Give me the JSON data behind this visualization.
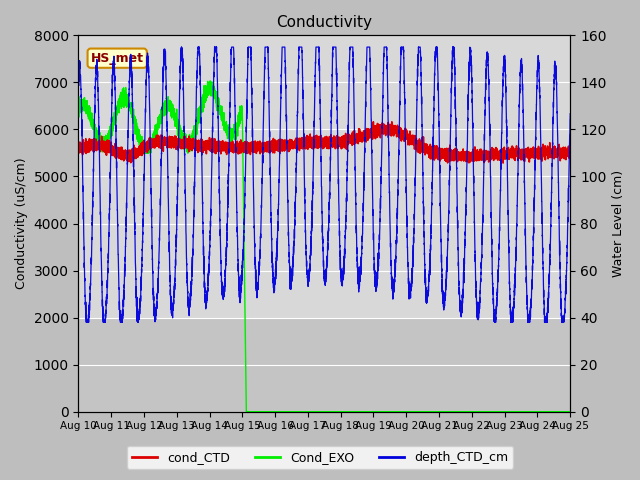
{
  "title": "Conductivity",
  "ylabel_left": "Conductivity (uS/cm)",
  "ylabel_right": "Water Level (cm)",
  "ylim_left": [
    0,
    8000
  ],
  "ylim_right": [
    0,
    160
  ],
  "x_tick_labels": [
    "Aug 10",
    "Aug 11",
    "Aug 12",
    "Aug 13",
    "Aug 14",
    "Aug 15",
    "Aug 16",
    "Aug 17",
    "Aug 18",
    "Aug 19",
    "Aug 20",
    "Aug 21",
    "Aug 22",
    "Aug 23",
    "Aug 24",
    "Aug 25"
  ],
  "color_cond_CTD": "#dd0000",
  "color_Cond_EXO": "#00ee00",
  "color_depth_CTD": "#0000dd",
  "annotation_text": "HS_met",
  "annotation_facecolor": "#ffffcc",
  "annotation_edgecolor": "#cc8800",
  "annotation_textcolor": "#880000",
  "plot_bg_upper": "#dcdcdc",
  "plot_bg_lower": "#c8c8c8",
  "fig_bg": "#c0c0c0",
  "legend_labels": [
    "cond_CTD",
    "Cond_EXO",
    "depth_CTD_cm"
  ],
  "n_points": 7200,
  "tidal_period_days": 0.518,
  "exo_cutoff_day": 5.0,
  "figsize": [
    6.4,
    4.8
  ],
  "dpi": 100
}
